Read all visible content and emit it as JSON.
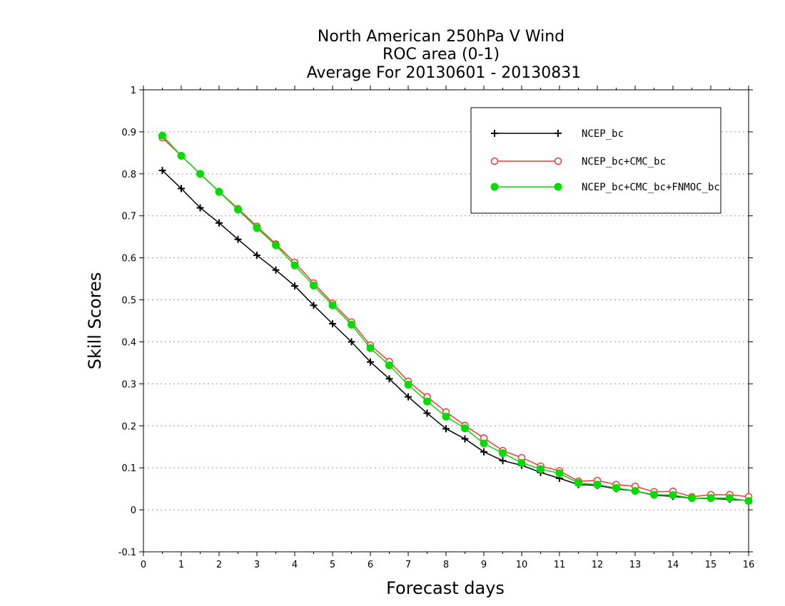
{
  "chart_data": {
    "type": "line",
    "title": [
      "North American 250hPa V Wind",
      "ROC area (0-1)",
      "Average For 20130601 - 20130831"
    ],
    "xlabel": "Forecast days",
    "ylabel": "Skill Scores",
    "xlim": [
      0,
      16
    ],
    "ylim": [
      -0.1,
      1
    ],
    "xticks": [
      "0",
      "1",
      "2",
      "3",
      "4",
      "5",
      "6",
      "7",
      "8",
      "9",
      "10",
      "11",
      "12",
      "13",
      "14",
      "15",
      "16"
    ],
    "yticks": [
      "-0.1",
      "0",
      "0.1",
      "0.2",
      "0.3",
      "0.4",
      "0.5",
      "0.6",
      "0.7",
      "0.8",
      "0.9",
      "1"
    ],
    "grid": "horizontal dotted",
    "legend_position": "top-right",
    "x": [
      0.5,
      1,
      1.5,
      2,
      2.5,
      3,
      3.5,
      4,
      4.5,
      5,
      5.5,
      6,
      6.5,
      7,
      7.5,
      8,
      8.5,
      9,
      9.5,
      10,
      10.5,
      11,
      11.5,
      12,
      12.5,
      13,
      13.5,
      14,
      14.5,
      15,
      15.5,
      16
    ],
    "series": [
      {
        "name": "NCEP_bc",
        "color": "#000000",
        "marker": "plus",
        "values": [
          0.808,
          0.765,
          0.719,
          0.683,
          0.644,
          0.606,
          0.571,
          0.533,
          0.487,
          0.443,
          0.4,
          0.352,
          0.312,
          0.269,
          0.23,
          0.193,
          0.169,
          0.138,
          0.117,
          0.106,
          0.089,
          0.075,
          0.06,
          0.058,
          0.05,
          0.045,
          0.035,
          0.032,
          0.028,
          0.027,
          0.025,
          0.022
        ]
      },
      {
        "name": "NCEP_bc+CMC_bc",
        "color": "#ff3333",
        "marker": "open-circle",
        "values": [
          0.886,
          0.843,
          0.8,
          0.758,
          0.717,
          0.675,
          0.633,
          0.589,
          0.54,
          0.492,
          0.447,
          0.392,
          0.353,
          0.306,
          0.269,
          0.233,
          0.201,
          0.171,
          0.141,
          0.124,
          0.104,
          0.093,
          0.068,
          0.07,
          0.06,
          0.056,
          0.043,
          0.044,
          0.031,
          0.036,
          0.036,
          0.031
        ]
      },
      {
        "name": "NCEP_bc+CMC_bc+FNMOC_bc",
        "color": "#00dd00",
        "marker": "filled-circle",
        "values": [
          0.891,
          0.843,
          0.8,
          0.757,
          0.715,
          0.671,
          0.63,
          0.582,
          0.534,
          0.487,
          0.441,
          0.385,
          0.344,
          0.298,
          0.258,
          0.222,
          0.194,
          0.158,
          0.135,
          0.112,
          0.097,
          0.087,
          0.064,
          0.06,
          0.052,
          0.045,
          0.036,
          0.035,
          0.028,
          0.028,
          0.028,
          0.021
        ]
      }
    ]
  }
}
